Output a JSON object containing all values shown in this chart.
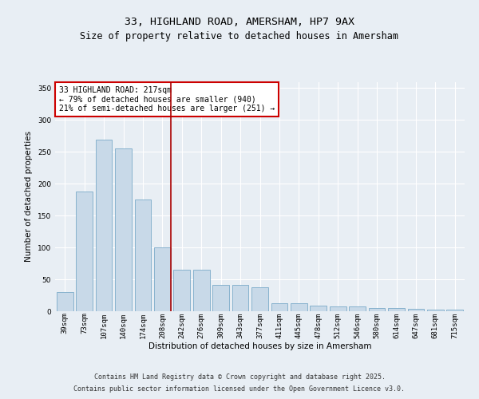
{
  "title_line1": "33, HIGHLAND ROAD, AMERSHAM, HP7 9AX",
  "title_line2": "Size of property relative to detached houses in Amersham",
  "xlabel": "Distribution of detached houses by size in Amersham",
  "ylabel": "Number of detached properties",
  "categories": [
    "39sqm",
    "73sqm",
    "107sqm",
    "140sqm",
    "174sqm",
    "208sqm",
    "242sqm",
    "276sqm",
    "309sqm",
    "343sqm",
    "377sqm",
    "411sqm",
    "445sqm",
    "478sqm",
    "512sqm",
    "546sqm",
    "580sqm",
    "614sqm",
    "647sqm",
    "681sqm",
    "715sqm"
  ],
  "values": [
    30,
    188,
    269,
    256,
    175,
    100,
    65,
    65,
    41,
    41,
    38,
    12,
    12,
    9,
    8,
    7,
    5,
    5,
    4,
    2,
    2
  ],
  "bar_color": "#c8d9e8",
  "bar_edge_color": "#7aaac8",
  "vline_index": 5,
  "vline_color": "#aa0000",
  "annotation_text": "33 HIGHLAND ROAD: 217sqm\n← 79% of detached houses are smaller (940)\n21% of semi-detached houses are larger (251) →",
  "annotation_box_color": "#ffffff",
  "annotation_box_edge": "#cc0000",
  "ylim": [
    0,
    360
  ],
  "yticks": [
    0,
    50,
    100,
    150,
    200,
    250,
    300,
    350
  ],
  "bg_color": "#e8eef4",
  "plot_bg_color": "#e8eef4",
  "footer_line1": "Contains HM Land Registry data © Crown copyright and database right 2025.",
  "footer_line2": "Contains public sector information licensed under the Open Government Licence v3.0.",
  "grid_color": "#ffffff",
  "title_fontsize": 9.5,
  "subtitle_fontsize": 8.5,
  "annotation_fontsize": 7,
  "footer_fontsize": 6,
  "axis_label_fontsize": 7.5,
  "tick_fontsize": 6.5
}
